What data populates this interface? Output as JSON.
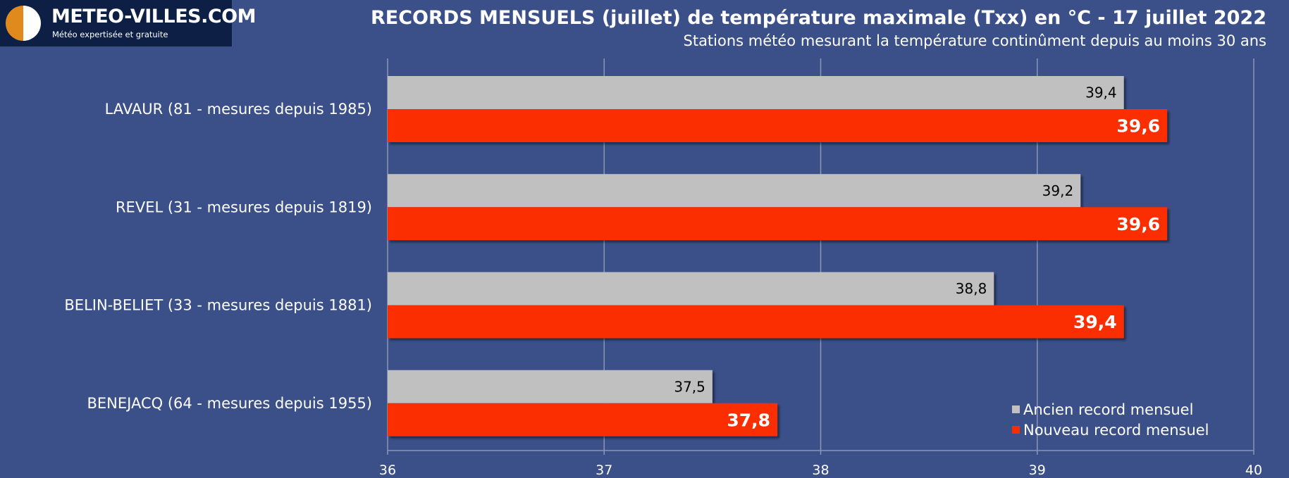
{
  "logo": {
    "title": "METEO-VILLES.COM",
    "tagline": "Météo expertisée et gratuite",
    "colors": {
      "left": "#e08a1e",
      "right": "#ffffff"
    }
  },
  "title": "RECORDS MENSUELS (juillet) de température maximale (Txx) en °C - 17 juillet 2022",
  "subtitle": "Stations météo mesurant la température continûment depuis au moins 30 ans",
  "chart_data": {
    "type": "bar",
    "orientation": "horizontal",
    "categories": [
      "LAVAUR (81 - mesures depuis 1985)",
      "REVEL (31 - mesures depuis 1819)",
      "BELIN-BELIET (33 - mesures depuis 1881)",
      "BENEJACQ (64 - mesures depuis 1955)"
    ],
    "series": [
      {
        "name": "Ancien record mensuel",
        "values": [
          39.4,
          39.2,
          38.8,
          37.5
        ],
        "labels": [
          "39,4",
          "39,2",
          "38,8",
          "37,5"
        ],
        "color": "#c0c0c0"
      },
      {
        "name": "Nouveau record mensuel",
        "values": [
          39.6,
          39.6,
          39.4,
          37.8
        ],
        "labels": [
          "39,6",
          "39,6",
          "39,4",
          "37,8"
        ],
        "color": "#fa2d00"
      }
    ],
    "xlim": [
      36,
      40
    ],
    "ticks": [
      36,
      37,
      38,
      39,
      40
    ],
    "grid": true,
    "legend": "bottom-right",
    "background": "#3b5088"
  }
}
